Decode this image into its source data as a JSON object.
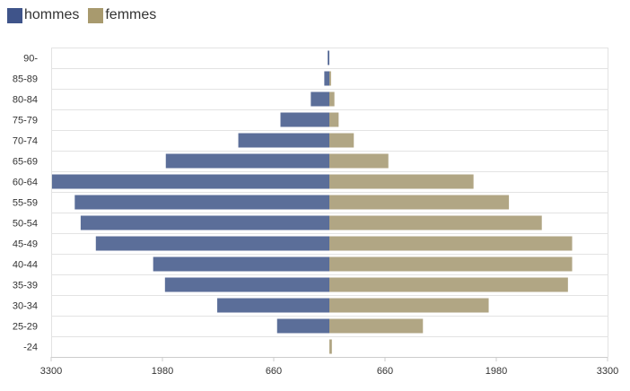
{
  "colors": {
    "male": "#5b6e99",
    "female": "#b1a684",
    "grid": "#e3e3e3"
  },
  "legend": [
    {
      "label": "hommes",
      "color": "#3f548a"
    },
    {
      "label": "femmes",
      "color": "#a89a6e"
    }
  ],
  "chart_data": {
    "type": "bar",
    "orientation": "horizontal-pyramid",
    "title": "",
    "xlabel": "",
    "ylabel": "",
    "xlim": [
      -3300,
      3300
    ],
    "x_ticks": [
      -3300,
      -1980,
      -660,
      660,
      1980,
      3300
    ],
    "x_tick_labels": [
      "3300",
      "1980",
      "660",
      "660",
      "1980",
      "3300"
    ],
    "grid": true,
    "legend_position": "top-left",
    "categories": [
      "90-",
      "85-89",
      "80-84",
      "75-79",
      "70-74",
      "65-69",
      "60-64",
      "55-59",
      "50-54",
      "45-49",
      "40-44",
      "35-39",
      "30-34",
      "25-29",
      "-24"
    ],
    "series": [
      {
        "name": "hommes",
        "values": [
          20,
          60,
          220,
          580,
          1080,
          1940,
          3290,
          3020,
          2950,
          2770,
          2090,
          1950,
          1330,
          620,
          0
        ]
      },
      {
        "name": "femmes",
        "values": [
          0,
          20,
          60,
          110,
          290,
          700,
          1710,
          2130,
          2520,
          2880,
          2880,
          2830,
          1890,
          1110,
          30
        ]
      }
    ]
  }
}
